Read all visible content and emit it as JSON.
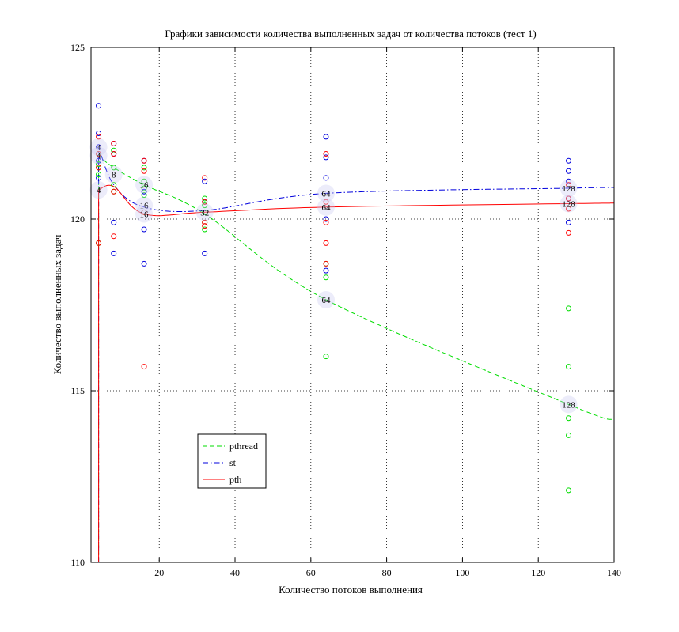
{
  "chart_data": {
    "type": "line",
    "title": "Графики зависимости количества выполненных задач от количества потоков (тест 1)",
    "xlabel": "Количество потоков выполнения",
    "ylabel": "Количество выполненных задач",
    "xlim": [
      2,
      140
    ],
    "ylim": [
      110,
      125
    ],
    "xticks": [
      20,
      40,
      60,
      80,
      100,
      120,
      140
    ],
    "yticks": [
      110,
      115,
      120,
      125
    ],
    "grid": true,
    "legend_position": "lower-left",
    "series": [
      {
        "name": "pthread",
        "color": "#00dd00",
        "dash": "dashed",
        "x": [
          4,
          8,
          16,
          32,
          64,
          128
        ],
        "y": [
          121.85,
          121.5,
          121.0,
          120.15,
          117.65,
          114.6
        ],
        "samples": [
          {
            "x": 4,
            "y": [
              121.9,
              121.6,
              121.5,
              121.3,
              119.3
            ]
          },
          {
            "x": 8,
            "y": [
              122.0,
              121.5,
              121.0,
              120.8
            ]
          },
          {
            "x": 16,
            "y": [
              121.5,
              121.1,
              120.9,
              120.7,
              120.2
            ]
          },
          {
            "x": 32,
            "y": [
              120.6,
              120.4,
              120.2,
              119.9,
              119.7
            ]
          },
          {
            "x": 64,
            "y": [
              118.7,
              118.3,
              116.0
            ]
          },
          {
            "x": 128,
            "y": [
              117.4,
              115.7,
              114.2,
              113.7,
              112.1
            ]
          }
        ]
      },
      {
        "name": "st",
        "color": "#0000dd",
        "dash": "dashdot",
        "x": [
          4,
          8,
          16,
          32,
          64,
          128
        ],
        "y": [
          122.1,
          121.0,
          120.35,
          120.25,
          120.75,
          120.9
        ],
        "samples": [
          {
            "x": 4,
            "y": [
              123.3,
              122.5,
              122.1,
              121.7,
              121.2
            ]
          },
          {
            "x": 8,
            "y": [
              122.2,
              121.9,
              119.9,
              119.0
            ]
          },
          {
            "x": 16,
            "y": [
              121.7,
              120.8,
              119.7,
              118.7
            ]
          },
          {
            "x": 32,
            "y": [
              121.1,
              120.5,
              119.0
            ]
          },
          {
            "x": 64,
            "y": [
              122.4,
              121.8,
              121.2,
              120.0,
              118.5
            ]
          },
          {
            "x": 128,
            "y": [
              121.7,
              121.4,
              121.1,
              120.6,
              119.9
            ]
          }
        ]
      },
      {
        "name": "pth",
        "color": "#ff0000",
        "dash": "solid",
        "x": [
          4,
          8,
          16,
          32,
          64,
          128
        ],
        "y": [
          120.85,
          120.95,
          120.15,
          120.2,
          120.35,
          120.45
        ],
        "samples": [
          {
            "x": 4,
            "y": [
              122.4,
              121.9,
              121.5,
              119.3
            ]
          },
          {
            "x": 8,
            "y": [
              122.2,
              121.9,
              120.8,
              119.5
            ]
          },
          {
            "x": 16,
            "y": [
              121.7,
              121.4,
              120.2,
              115.7
            ]
          },
          {
            "x": 32,
            "y": [
              121.2,
              120.5,
              119.9,
              119.8
            ]
          },
          {
            "x": 64,
            "y": [
              121.9,
              120.5,
              119.9,
              119.3,
              118.7
            ]
          },
          {
            "x": 128,
            "y": [
              121.0,
              120.6,
              120.3,
              119.6
            ]
          }
        ]
      }
    ],
    "point_labels": [
      {
        "series": "st",
        "x": 4,
        "y": 122.1,
        "text": "4"
      },
      {
        "series": "pthread",
        "x": 4,
        "y": 121.85,
        "text": "4"
      },
      {
        "series": "pth",
        "x": 4,
        "y": 120.85,
        "text": "4"
      },
      {
        "series": "pthread",
        "x": 8,
        "y": 121.3,
        "text": "8"
      },
      {
        "series": "pthread",
        "x": 16,
        "y": 121.0,
        "text": "16"
      },
      {
        "series": "st",
        "x": 16,
        "y": 120.4,
        "text": "16"
      },
      {
        "series": "pth",
        "x": 16,
        "y": 120.15,
        "text": "16"
      },
      {
        "series": "pth",
        "x": 32,
        "y": 120.2,
        "text": "32"
      },
      {
        "series": "st",
        "x": 64,
        "y": 120.75,
        "text": "64"
      },
      {
        "series": "pth",
        "x": 64,
        "y": 120.35,
        "text": "64"
      },
      {
        "series": "pthread",
        "x": 64,
        "y": 117.65,
        "text": "64"
      },
      {
        "series": "st",
        "x": 128,
        "y": 120.9,
        "text": "128"
      },
      {
        "series": "pth",
        "x": 128,
        "y": 120.45,
        "text": "128"
      },
      {
        "series": "pthread",
        "x": 128,
        "y": 114.6,
        "text": "128"
      }
    ]
  }
}
